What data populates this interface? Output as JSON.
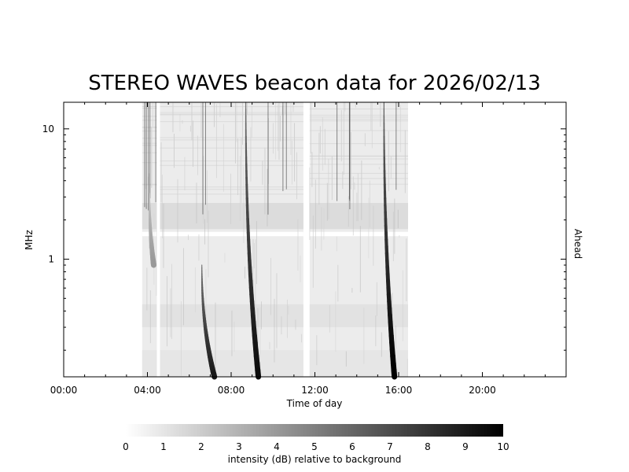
{
  "chart_data": {
    "type": "heatmap",
    "title": "STEREO WAVES beacon data for 2026/02/13",
    "xlabel": "Time of day",
    "ylabel": "MHz",
    "right_label": "Ahead",
    "right_label_color": "#d40000",
    "x_unit": "hours",
    "xlim": [
      0,
      24
    ],
    "x_ticks": [
      {
        "value": 0,
        "label": "00:00"
      },
      {
        "value": 4,
        "label": "04:00"
      },
      {
        "value": 8,
        "label": "08:00"
      },
      {
        "value": 12,
        "label": "12:00"
      },
      {
        "value": 16,
        "label": "16:00"
      },
      {
        "value": 20,
        "label": "20:00"
      }
    ],
    "y_scale": "log",
    "ylim": [
      0.125,
      16
    ],
    "y_ticks": [
      {
        "value": 1,
        "label": "1"
      },
      {
        "value": 10,
        "label": "10"
      }
    ],
    "data_coverage_hours": [
      [
        3.75,
        4.45
      ],
      [
        4.6,
        11.45
      ],
      [
        11.75,
        16.45
      ]
    ],
    "bursts": [
      {
        "start_hour": 6.6,
        "end_hour": 7.2,
        "start_mhz": 0.9,
        "end_mhz": 0.125,
        "intensity": 9
      },
      {
        "start_hour": 8.7,
        "end_hour": 9.3,
        "start_mhz": 16,
        "end_mhz": 0.125,
        "intensity": 9.5
      },
      {
        "start_hour": 15.3,
        "end_hour": 15.8,
        "start_mhz": 16,
        "end_mhz": 0.125,
        "intensity": 10
      },
      {
        "start_hour": 4.1,
        "end_hour": 4.3,
        "start_mhz": 3.2,
        "end_mhz": 0.9,
        "intensity": 4
      }
    ],
    "colorbar": {
      "label": "intensity (dB) relative to background",
      "min": 0,
      "max": 10,
      "ticks": [
        "0",
        "1",
        "2",
        "3",
        "4",
        "5",
        "6",
        "7",
        "8",
        "9",
        "10"
      ],
      "color_low": "#ffffff",
      "color_high": "#000000"
    }
  }
}
